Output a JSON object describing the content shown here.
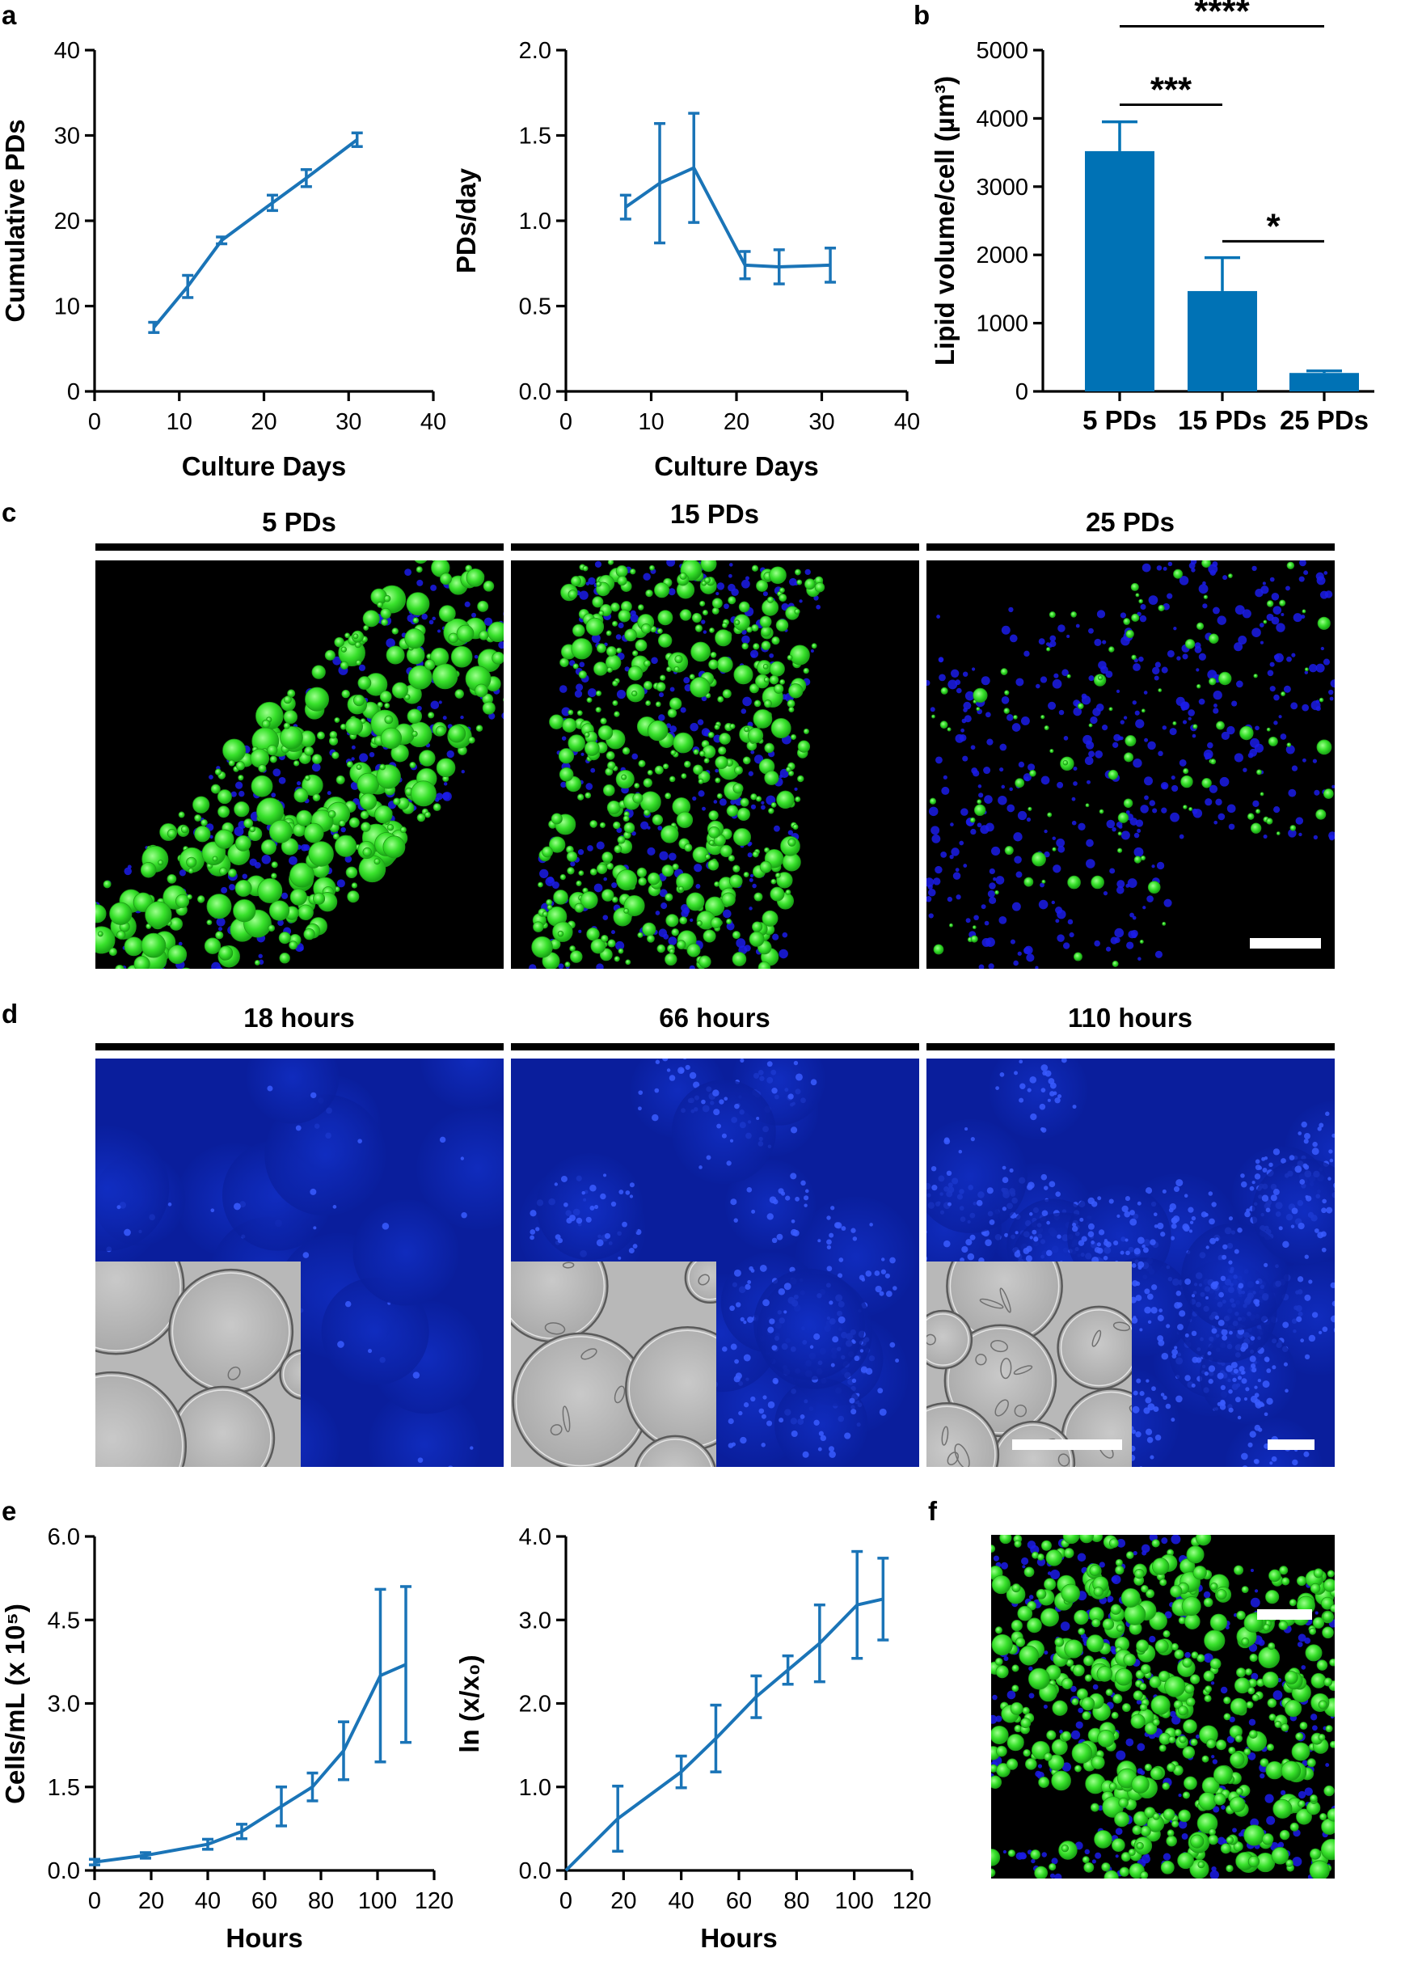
{
  "panels": {
    "a": "a",
    "b": "b",
    "c": "c",
    "d": "d",
    "e": "e",
    "f": "f"
  },
  "chart_data": [
    {
      "id": "a1",
      "type": "line",
      "xlabel": "Culture Days",
      "ylabel": "Cumulative PDs",
      "xlim": [
        0,
        40
      ],
      "ylim": [
        0,
        40
      ],
      "xticks": [
        "0",
        "10",
        "20",
        "30",
        "40"
      ],
      "yticks": [
        "0",
        "10",
        "20",
        "30",
        "40"
      ],
      "x": [
        7,
        11,
        15,
        21,
        25,
        31
      ],
      "y": [
        7.5,
        12.3,
        17.7,
        22.1,
        25.0,
        29.5
      ],
      "err": [
        0.6,
        1.3,
        0.4,
        0.9,
        1.0,
        0.8
      ]
    },
    {
      "id": "a2",
      "type": "line",
      "xlabel": "Culture Days",
      "ylabel": "PDs/day",
      "xlim": [
        0,
        40
      ],
      "ylim": [
        0,
        2.0
      ],
      "xticks": [
        "0",
        "10",
        "20",
        "30",
        "40"
      ],
      "yticks": [
        "0.0",
        "0.5",
        "1.0",
        "1.5",
        "2.0"
      ],
      "x": [
        7,
        11,
        15,
        21,
        25,
        31
      ],
      "y": [
        1.08,
        1.22,
        1.31,
        0.74,
        0.73,
        0.74
      ],
      "err": [
        0.07,
        0.35,
        0.32,
        0.08,
        0.1,
        0.1
      ]
    },
    {
      "id": "b",
      "type": "bar",
      "ylabel": "Lipid volume/cell (µm³)",
      "ylim": [
        0,
        5000
      ],
      "yticks": [
        "0",
        "1000",
        "2000",
        "3000",
        "4000",
        "5000"
      ],
      "categories": [
        "5 PDs",
        "15 PDs",
        "25 PDs"
      ],
      "values": [
        3520,
        1470,
        270
      ],
      "err": [
        430,
        490,
        30
      ],
      "significance": [
        {
          "from": 0,
          "to": 2,
          "label": "****",
          "level": 5350
        },
        {
          "from": 0,
          "to": 1,
          "label": "***",
          "level": 4200
        },
        {
          "from": 1,
          "to": 2,
          "label": "*",
          "level": 2200
        }
      ]
    },
    {
      "id": "e1",
      "type": "line",
      "xlabel": "Hours",
      "ylabel": "Cells/mL (x 10⁵)",
      "xlim": [
        0,
        120
      ],
      "ylim": [
        0,
        6.0
      ],
      "xticks": [
        "0",
        "20",
        "40",
        "60",
        "80",
        "100",
        "120"
      ],
      "yticks": [
        "0.0",
        "1.5",
        "3.0",
        "4.5",
        "6.0"
      ],
      "x": [
        0,
        18,
        40,
        52,
        66,
        77,
        88,
        101,
        110
      ],
      "y": [
        0.15,
        0.27,
        0.47,
        0.7,
        1.15,
        1.5,
        2.15,
        3.5,
        3.7
      ],
      "err": [
        0.05,
        0.05,
        0.09,
        0.13,
        0.35,
        0.25,
        0.52,
        1.55,
        1.4
      ]
    },
    {
      "id": "e2",
      "type": "line",
      "xlabel": "Hours",
      "ylabel": "ln (x/x₀)",
      "xlim": [
        0,
        120
      ],
      "ylim": [
        0,
        4.0
      ],
      "xticks": [
        "0",
        "20",
        "40",
        "60",
        "80",
        "100",
        "120"
      ],
      "yticks": [
        "0.0",
        "1.0",
        "2.0",
        "3.0",
        "4.0"
      ],
      "x": [
        0,
        18,
        40,
        52,
        66,
        77,
        88,
        101,
        110
      ],
      "y": [
        0.0,
        0.62,
        1.18,
        1.58,
        2.08,
        2.4,
        2.72,
        3.18,
        3.25
      ],
      "err": [
        0.0,
        0.39,
        0.19,
        0.4,
        0.25,
        0.17,
        0.46,
        0.64,
        0.49
      ]
    }
  ],
  "images": {
    "c_labels": [
      "5 PDs",
      "15 PDs",
      "25 PDs"
    ],
    "d_labels": [
      "18 hours",
      "66 hours",
      "110 hours"
    ]
  },
  "colors": {
    "series": "#1a74b7",
    "bar": "#0072b5",
    "lipid": "#33e02a",
    "nucleus": "#1b1ce8",
    "background": "#000000",
    "blue_field": "#0a1e9c",
    "brightfield": "#b8b8b8"
  }
}
